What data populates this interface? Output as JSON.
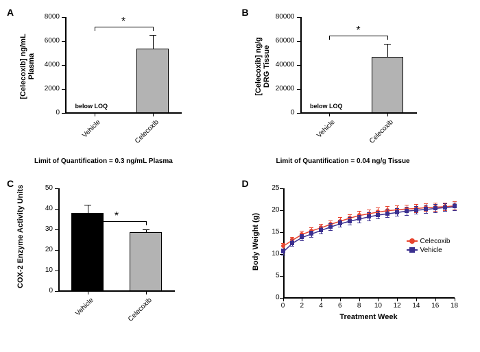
{
  "panelA": {
    "label": "A",
    "type": "bar",
    "ylabel": "[Celecoxib] ng/mL\nPlasma",
    "ylim": [
      0,
      8000
    ],
    "ytick_step": 2000,
    "yticks": [
      0,
      2000,
      4000,
      6000,
      8000
    ],
    "categories": [
      "Vehicle",
      "Celecoxib"
    ],
    "values": [
      50,
      5400
    ],
    "errors": [
      0,
      1100
    ],
    "bar_colors": [
      "#ffffff",
      "#b3b3b3"
    ],
    "annotation": "below LOQ",
    "significance": "*",
    "caption": "Limit of Quantification = 0.3 ng/mL  Plasma",
    "background_color": "#ffffff"
  },
  "panelB": {
    "label": "B",
    "type": "bar",
    "ylabel": "[Celecoxib] ng/g\nDRG Tissue",
    "ylim": [
      0,
      80000
    ],
    "ytick_step": 20000,
    "yticks": [
      0,
      20000,
      40000,
      60000,
      80000
    ],
    "categories": [
      "Vehicle",
      "Celecoxib"
    ],
    "values": [
      500,
      47000
    ],
    "errors": [
      0,
      11000
    ],
    "bar_colors": [
      "#ffffff",
      "#b3b3b3"
    ],
    "annotation": "below LOQ",
    "significance": "*",
    "caption": "Limit of Quantification = 0.04 ng/g Tissue",
    "background_color": "#ffffff"
  },
  "panelC": {
    "label": "C",
    "type": "bar",
    "ylabel": "COX-2 Enzyme Activity Units",
    "ylim": [
      0,
      50
    ],
    "ytick_step": 10,
    "yticks": [
      0,
      10,
      20,
      30,
      40,
      50
    ],
    "categories": [
      "Vehicle",
      "Celecoxib"
    ],
    "values": [
      38,
      28.5
    ],
    "errors": [
      4,
      1.5
    ],
    "bar_colors": [
      "#000000",
      "#b3b3b3"
    ],
    "significance": "*",
    "background_color": "#ffffff"
  },
  "panelD": {
    "label": "D",
    "type": "line",
    "ylabel": "Body Weight (g)",
    "xlabel": "Treatment Week",
    "ylim": [
      0,
      25
    ],
    "ytick_step": 5,
    "yticks": [
      0,
      5,
      10,
      15,
      20,
      25
    ],
    "xlim": [
      0,
      18
    ],
    "xtick_step": 2,
    "xticks": [
      0,
      2,
      4,
      6,
      8,
      10,
      12,
      14,
      16,
      18
    ],
    "series": [
      {
        "name": "Celecoxib",
        "color": "#e8452f",
        "marker": "circle",
        "x": [
          0,
          1,
          2,
          3,
          4,
          5,
          6,
          7,
          8,
          9,
          10,
          11,
          12,
          13,
          14,
          15,
          16,
          17,
          18
        ],
        "y": [
          11.8,
          13.2,
          14.5,
          15.3,
          16.0,
          16.8,
          17.5,
          18.2,
          18.8,
          19.2,
          19.6,
          19.9,
          20.1,
          20.3,
          20.4,
          20.6,
          20.7,
          20.8,
          21.0
        ],
        "err": [
          0.7,
          0.7,
          0.7,
          0.7,
          0.8,
          0.8,
          0.8,
          0.8,
          0.9,
          0.9,
          0.9,
          0.9,
          0.9,
          0.9,
          0.9,
          0.9,
          0.9,
          0.9,
          0.9
        ]
      },
      {
        "name": "Vehicle",
        "color": "#3a2f8f",
        "marker": "square",
        "x": [
          0,
          1,
          2,
          3,
          4,
          5,
          6,
          7,
          8,
          9,
          10,
          11,
          12,
          13,
          14,
          15,
          16,
          17,
          18
        ],
        "y": [
          10.5,
          12.5,
          13.8,
          14.6,
          15.4,
          16.2,
          16.9,
          17.5,
          18.0,
          18.5,
          18.9,
          19.2,
          19.5,
          19.8,
          20.0,
          20.2,
          20.4,
          20.6,
          20.8
        ],
        "err": [
          0.7,
          0.7,
          0.7,
          0.7,
          0.8,
          0.8,
          0.8,
          0.8,
          0.9,
          0.9,
          0.9,
          0.9,
          0.9,
          0.9,
          0.9,
          0.9,
          0.9,
          0.9,
          0.9
        ]
      }
    ],
    "legend": [
      "Celecoxib",
      "Vehicle"
    ],
    "background_color": "#ffffff"
  }
}
